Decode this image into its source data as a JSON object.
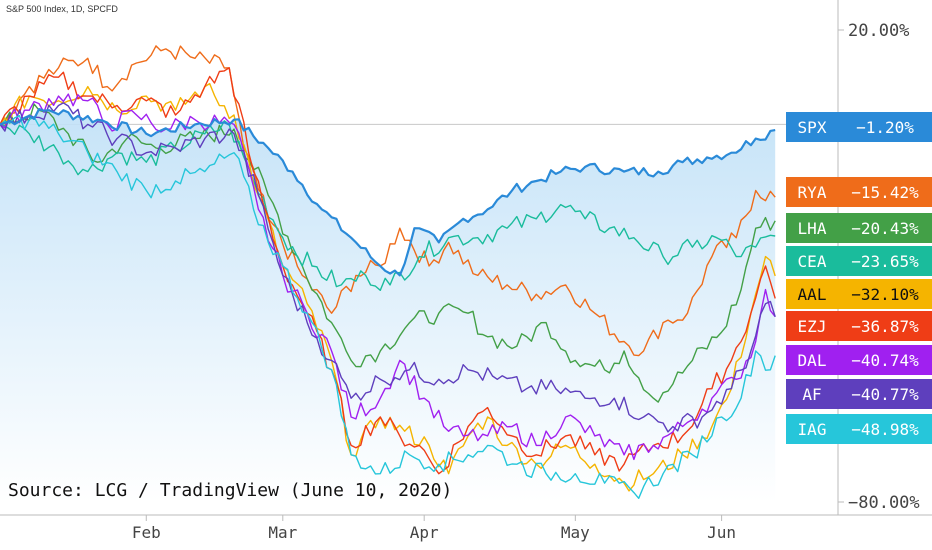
{
  "header": "S&P 500 Index, 1D, SPCFD",
  "source": "Source: LCG / TradingView (June 10, 2020)",
  "colors": {
    "SPX": "#2a8ad8",
    "RYA": "#ef6c1a",
    "LHA": "#43a047",
    "CEA": "#1abc9c",
    "AAL": "#f5b400",
    "EZJ": "#ef3d16",
    "DAL": "#a020f0",
    "AF": "#5e3fbd",
    "IAG": "#26c6da",
    "grid": "#e3e3e3",
    "axis": "#bbbbbb"
  },
  "chart_data": {
    "type": "line",
    "ylabel": "",
    "xlabel": "",
    "y_ticks": [
      {
        "value": 20,
        "label": "20.00%"
      },
      {
        "value": -80,
        "label": "−80.00%"
      }
    ],
    "x_ticks": [
      {
        "value": 30,
        "label": "Feb"
      },
      {
        "value": 58,
        "label": "Mar"
      },
      {
        "value": 87,
        "label": "Apr"
      },
      {
        "value": 118,
        "label": "May"
      },
      {
        "value": 148,
        "label": "Jun"
      }
    ],
    "xlim": [
      0,
      161
    ],
    "ylim": [
      -80,
      20
    ],
    "series": [
      {
        "name": "SPX",
        "value_label": "−1.20%",
        "anchors": [
          [
            0,
            0
          ],
          [
            10,
            3
          ],
          [
            20,
            1
          ],
          [
            30,
            -2
          ],
          [
            40,
            0
          ],
          [
            48,
            1
          ],
          [
            55,
            -5
          ],
          [
            60,
            -10
          ],
          [
            66,
            -18
          ],
          [
            72,
            -24
          ],
          [
            78,
            -30
          ],
          [
            82,
            -32
          ],
          [
            85,
            -22
          ],
          [
            90,
            -25
          ],
          [
            95,
            -20
          ],
          [
            100,
            -18
          ],
          [
            105,
            -14
          ],
          [
            110,
            -12
          ],
          [
            115,
            -10
          ],
          [
            120,
            -9
          ],
          [
            128,
            -10
          ],
          [
            135,
            -10
          ],
          [
            140,
            -8
          ],
          [
            145,
            -7
          ],
          [
            150,
            -6
          ],
          [
            155,
            -3
          ],
          [
            159,
            -1.2
          ]
        ]
      },
      {
        "name": "RYA",
        "value_label": "−15.42%",
        "anchors": [
          [
            0,
            0
          ],
          [
            6,
            8
          ],
          [
            12,
            12
          ],
          [
            18,
            14
          ],
          [
            22,
            8
          ],
          [
            28,
            13
          ],
          [
            34,
            16
          ],
          [
            40,
            14
          ],
          [
            47,
            12
          ],
          [
            50,
            -5
          ],
          [
            55,
            -20
          ],
          [
            62,
            -32
          ],
          [
            68,
            -40
          ],
          [
            73,
            -32
          ],
          [
            78,
            -30
          ],
          [
            82,
            -22
          ],
          [
            88,
            -30
          ],
          [
            92,
            -25
          ],
          [
            98,
            -32
          ],
          [
            104,
            -34
          ],
          [
            110,
            -36
          ],
          [
            116,
            -34
          ],
          [
            122,
            -40
          ],
          [
            128,
            -46
          ],
          [
            132,
            -48
          ],
          [
            136,
            -42
          ],
          [
            141,
            -40
          ],
          [
            146,
            -28
          ],
          [
            151,
            -24
          ],
          [
            155,
            -14
          ],
          [
            159,
            -15.42
          ]
        ]
      },
      {
        "name": "LHA",
        "value_label": "−20.43%",
        "anchors": [
          [
            0,
            0
          ],
          [
            8,
            3
          ],
          [
            14,
            -2
          ],
          [
            20,
            -8
          ],
          [
            26,
            -3
          ],
          [
            32,
            -5
          ],
          [
            40,
            -3
          ],
          [
            48,
            -1
          ],
          [
            55,
            -15
          ],
          [
            62,
            -30
          ],
          [
            68,
            -42
          ],
          [
            72,
            -50
          ],
          [
            78,
            -48
          ],
          [
            84,
            -42
          ],
          [
            90,
            -40
          ],
          [
            96,
            -40
          ],
          [
            100,
            -45
          ],
          [
            106,
            -47
          ],
          [
            112,
            -42
          ],
          [
            118,
            -50
          ],
          [
            124,
            -52
          ],
          [
            128,
            -48
          ],
          [
            134,
            -58
          ],
          [
            138,
            -55
          ],
          [
            142,
            -50
          ],
          [
            148,
            -44
          ],
          [
            152,
            -35
          ],
          [
            155,
            -22
          ],
          [
            159,
            -20.43
          ]
        ]
      },
      {
        "name": "CEA",
        "value_label": "−23.65%",
        "anchors": [
          [
            0,
            0
          ],
          [
            6,
            -2
          ],
          [
            12,
            -6
          ],
          [
            18,
            -10
          ],
          [
            24,
            -6
          ],
          [
            30,
            -8
          ],
          [
            36,
            -5
          ],
          [
            42,
            -2
          ],
          [
            47,
            0
          ],
          [
            52,
            -12
          ],
          [
            58,
            -24
          ],
          [
            64,
            -30
          ],
          [
            70,
            -34
          ],
          [
            75,
            -32
          ],
          [
            80,
            -34
          ],
          [
            86,
            -28
          ],
          [
            92,
            -24
          ],
          [
            98,
            -24
          ],
          [
            104,
            -22
          ],
          [
            110,
            -20
          ],
          [
            115,
            -17
          ],
          [
            120,
            -20
          ],
          [
            125,
            -22
          ],
          [
            130,
            -24
          ],
          [
            136,
            -28
          ],
          [
            142,
            -26
          ],
          [
            147,
            -24
          ],
          [
            152,
            -28
          ],
          [
            155,
            -26
          ],
          [
            159,
            -23.65
          ]
        ]
      },
      {
        "name": "AAL",
        "value_label": "−32.10%",
        "anchors": [
          [
            0,
            0
          ],
          [
            6,
            6
          ],
          [
            12,
            5
          ],
          [
            18,
            8
          ],
          [
            24,
            3
          ],
          [
            30,
            6
          ],
          [
            36,
            3
          ],
          [
            42,
            8
          ],
          [
            48,
            2
          ],
          [
            53,
            -15
          ],
          [
            58,
            -30
          ],
          [
            63,
            -38
          ],
          [
            68,
            -50
          ],
          [
            72,
            -70
          ],
          [
            78,
            -62
          ],
          [
            83,
            -65
          ],
          [
            88,
            -68
          ],
          [
            92,
            -74
          ],
          [
            96,
            -66
          ],
          [
            100,
            -62
          ],
          [
            104,
            -68
          ],
          [
            110,
            -72
          ],
          [
            116,
            -68
          ],
          [
            122,
            -72
          ],
          [
            128,
            -76
          ],
          [
            134,
            -74
          ],
          [
            140,
            -70
          ],
          [
            146,
            -64
          ],
          [
            150,
            -56
          ],
          [
            154,
            -40
          ],
          [
            157,
            -28
          ],
          [
            159,
            -32.1
          ]
        ]
      },
      {
        "name": "EZJ",
        "value_label": "−36.87%",
        "anchors": [
          [
            0,
            0
          ],
          [
            6,
            6
          ],
          [
            12,
            10
          ],
          [
            18,
            6
          ],
          [
            24,
            4
          ],
          [
            30,
            5
          ],
          [
            36,
            2
          ],
          [
            42,
            8
          ],
          [
            47,
            12
          ],
          [
            52,
            -10
          ],
          [
            58,
            -30
          ],
          [
            63,
            -40
          ],
          [
            68,
            -52
          ],
          [
            72,
            -68
          ],
          [
            78,
            -62
          ],
          [
            82,
            -66
          ],
          [
            86,
            -68
          ],
          [
            90,
            -74
          ],
          [
            96,
            -64
          ],
          [
            100,
            -60
          ],
          [
            105,
            -66
          ],
          [
            110,
            -70
          ],
          [
            116,
            -66
          ],
          [
            122,
            -70
          ],
          [
            128,
            -72
          ],
          [
            134,
            -68
          ],
          [
            140,
            -66
          ],
          [
            146,
            -56
          ],
          [
            150,
            -50
          ],
          [
            154,
            -40
          ],
          [
            157,
            -30
          ],
          [
            159,
            -36.87
          ]
        ]
      },
      {
        "name": "DAL",
        "value_label": "−40.74%",
        "anchors": [
          [
            0,
            0
          ],
          [
            6,
            3
          ],
          [
            12,
            6
          ],
          [
            18,
            5
          ],
          [
            22,
            0
          ],
          [
            28,
            2
          ],
          [
            34,
            -1
          ],
          [
            40,
            1
          ],
          [
            48,
            0
          ],
          [
            53,
            -18
          ],
          [
            58,
            -32
          ],
          [
            63,
            -40
          ],
          [
            68,
            -48
          ],
          [
            72,
            -62
          ],
          [
            78,
            -58
          ],
          [
            82,
            -50
          ],
          [
            87,
            -58
          ],
          [
            91,
            -64
          ],
          [
            95,
            -66
          ],
          [
            100,
            -66
          ],
          [
            105,
            -64
          ],
          [
            110,
            -68
          ],
          [
            116,
            -62
          ],
          [
            122,
            -66
          ],
          [
            128,
            -70
          ],
          [
            134,
            -68
          ],
          [
            140,
            -64
          ],
          [
            146,
            -58
          ],
          [
            151,
            -54
          ],
          [
            155,
            -46
          ],
          [
            157,
            -35
          ],
          [
            159,
            -40.74
          ]
        ]
      },
      {
        "name": "AF",
        "value_label": "−40.77%",
        "anchors": [
          [
            0,
            0
          ],
          [
            6,
            2
          ],
          [
            12,
            4
          ],
          [
            18,
            0
          ],
          [
            24,
            -3
          ],
          [
            30,
            -6
          ],
          [
            36,
            -5
          ],
          [
            42,
            -3
          ],
          [
            48,
            -2
          ],
          [
            53,
            -15
          ],
          [
            58,
            -32
          ],
          [
            63,
            -42
          ],
          [
            68,
            -50
          ],
          [
            72,
            -58
          ],
          [
            78,
            -54
          ],
          [
            84,
            -52
          ],
          [
            90,
            -54
          ],
          [
            96,
            -52
          ],
          [
            102,
            -54
          ],
          [
            108,
            -56
          ],
          [
            114,
            -56
          ],
          [
            120,
            -58
          ],
          [
            126,
            -58
          ],
          [
            132,
            -62
          ],
          [
            138,
            -64
          ],
          [
            144,
            -62
          ],
          [
            150,
            -56
          ],
          [
            154,
            -48
          ],
          [
            157,
            -38
          ],
          [
            159,
            -40.77
          ]
        ]
      },
      {
        "name": "IAG",
        "value_label": "−48.98%",
        "anchors": [
          [
            0,
            0
          ],
          [
            6,
            1
          ],
          [
            12,
            -2
          ],
          [
            18,
            -6
          ],
          [
            24,
            -10
          ],
          [
            30,
            -14
          ],
          [
            36,
            -12
          ],
          [
            42,
            -10
          ],
          [
            48,
            -6
          ],
          [
            52,
            -18
          ],
          [
            58,
            -30
          ],
          [
            63,
            -40
          ],
          [
            68,
            -52
          ],
          [
            72,
            -70
          ],
          [
            78,
            -74
          ],
          [
            84,
            -70
          ],
          [
            90,
            -72
          ],
          [
            96,
            -70
          ],
          [
            100,
            -68
          ],
          [
            106,
            -72
          ],
          [
            112,
            -74
          ],
          [
            118,
            -74
          ],
          [
            124,
            -76
          ],
          [
            130,
            -78
          ],
          [
            136,
            -74
          ],
          [
            142,
            -70
          ],
          [
            148,
            -62
          ],
          [
            152,
            -58
          ],
          [
            155,
            -48
          ],
          [
            158,
            -52
          ],
          [
            159,
            -48.98
          ]
        ]
      }
    ]
  }
}
